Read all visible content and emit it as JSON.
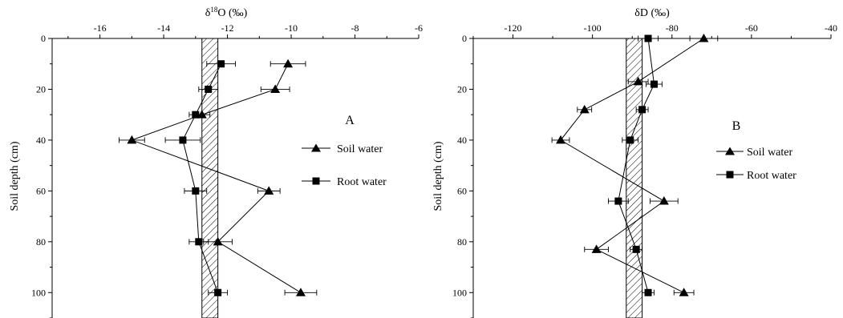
{
  "chart_data": [
    {
      "type": "scatter",
      "panel_label": "A",
      "title": "",
      "xlabel_parts": [
        "δ",
        "18",
        "O (‰)"
      ],
      "ylabel": "Soil depth (cm)",
      "xlim": [
        -17.5,
        -6
      ],
      "ylim": [
        0,
        110
      ],
      "x_axis_position": "top",
      "y_inverted": true,
      "grid": false,
      "xticks": [
        -16,
        -14,
        -12,
        -10,
        -8,
        -6
      ],
      "yticks": [
        0,
        20,
        40,
        60,
        80,
        100
      ],
      "band": {
        "x0": -12.8,
        "x1": -12.3,
        "pattern": "hatched"
      },
      "series": [
        {
          "name": "Soil water",
          "marker": "triangle",
          "points": [
            {
              "x": -10.1,
              "y": 10,
              "err": 0.55
            },
            {
              "x": -10.5,
              "y": 20,
              "err": 0.45
            },
            {
              "x": -12.8,
              "y": 30,
              "err": 0.25
            },
            {
              "x": -15.0,
              "y": 40,
              "err": 0.4
            },
            {
              "x": -10.7,
              "y": 60,
              "err": 0.35
            },
            {
              "x": -12.3,
              "y": 80,
              "err": 0.45
            },
            {
              "x": -9.7,
              "y": 100,
              "err": 0.5
            }
          ]
        },
        {
          "name": "Root water",
          "marker": "square",
          "points": [
            {
              "x": -12.2,
              "y": 10,
              "err": 0.45
            },
            {
              "x": -12.6,
              "y": 20,
              "err": 0.3
            },
            {
              "x": -13.0,
              "y": 30,
              "err": 0.2
            },
            {
              "x": -13.4,
              "y": 40,
              "err": 0.55
            },
            {
              "x": -13.0,
              "y": 60,
              "err": 0.35
            },
            {
              "x": -12.9,
              "y": 80,
              "err": 0.3
            },
            {
              "x": -12.3,
              "y": 100,
              "err": 0.3
            }
          ]
        }
      ]
    },
    {
      "type": "scatter",
      "panel_label": "B",
      "title": "",
      "xlabel_parts": [
        "δD (‰)"
      ],
      "ylabel": "Soil depth (cm)",
      "xlim": [
        -130,
        -40
      ],
      "ylim": [
        0,
        110
      ],
      "x_axis_position": "top",
      "y_inverted": true,
      "grid": false,
      "xticks": [
        -120,
        -100,
        -80,
        -60,
        -40
      ],
      "yticks": [
        0,
        20,
        40,
        60,
        80,
        100
      ],
      "band": {
        "x0": -91.5,
        "x1": -87.5,
        "pattern": "hatched"
      },
      "series": [
        {
          "name": "Soil water",
          "marker": "triangle",
          "points": [
            {
              "x": -72,
              "y": 0,
              "err": 3.5
            },
            {
              "x": -88.5,
              "y": 17,
              "err": 2.5
            },
            {
              "x": -102,
              "y": 28,
              "err": 1.8
            },
            {
              "x": -108,
              "y": 40,
              "err": 2.2
            },
            {
              "x": -82,
              "y": 64,
              "err": 3.5
            },
            {
              "x": -99,
              "y": 83,
              "err": 3.0
            },
            {
              "x": -77,
              "y": 100,
              "err": 2.5
            }
          ]
        },
        {
          "name": "Root water",
          "marker": "square",
          "points": [
            {
              "x": -86,
              "y": 0,
              "err": 2.5
            },
            {
              "x": -84.5,
              "y": 18,
              "err": 2.0
            },
            {
              "x": -87.5,
              "y": 28,
              "err": 1.5
            },
            {
              "x": -90.5,
              "y": 40,
              "err": 2.0
            },
            {
              "x": -93.5,
              "y": 64,
              "err": 2.5
            },
            {
              "x": -89,
              "y": 83,
              "err": 1.5
            },
            {
              "x": -86,
              "y": 100,
              "err": 1.5
            }
          ]
        }
      ]
    }
  ]
}
